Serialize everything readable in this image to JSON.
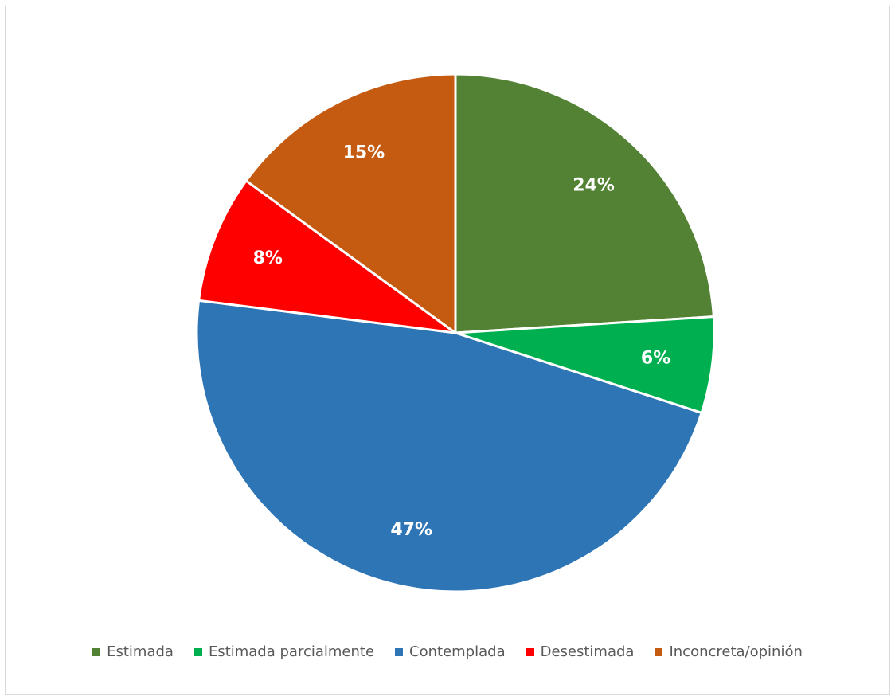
{
  "chart_data": {
    "type": "pie",
    "title": "",
    "categories": [
      "Estimada",
      "Estimada parcialmente",
      "Contemplada",
      "Desestimada",
      "Inconcreta/opinión"
    ],
    "values": [
      24,
      6,
      47,
      8,
      15
    ],
    "labels": [
      "24%",
      "6%",
      "47%",
      "8%",
      "15%"
    ],
    "colors": [
      "#548235",
      "#00B050",
      "#2E75B6",
      "#FF0000",
      "#C55A11"
    ],
    "start_angle_deg": 0,
    "direction": "clockwise",
    "legend_position": "bottom"
  }
}
